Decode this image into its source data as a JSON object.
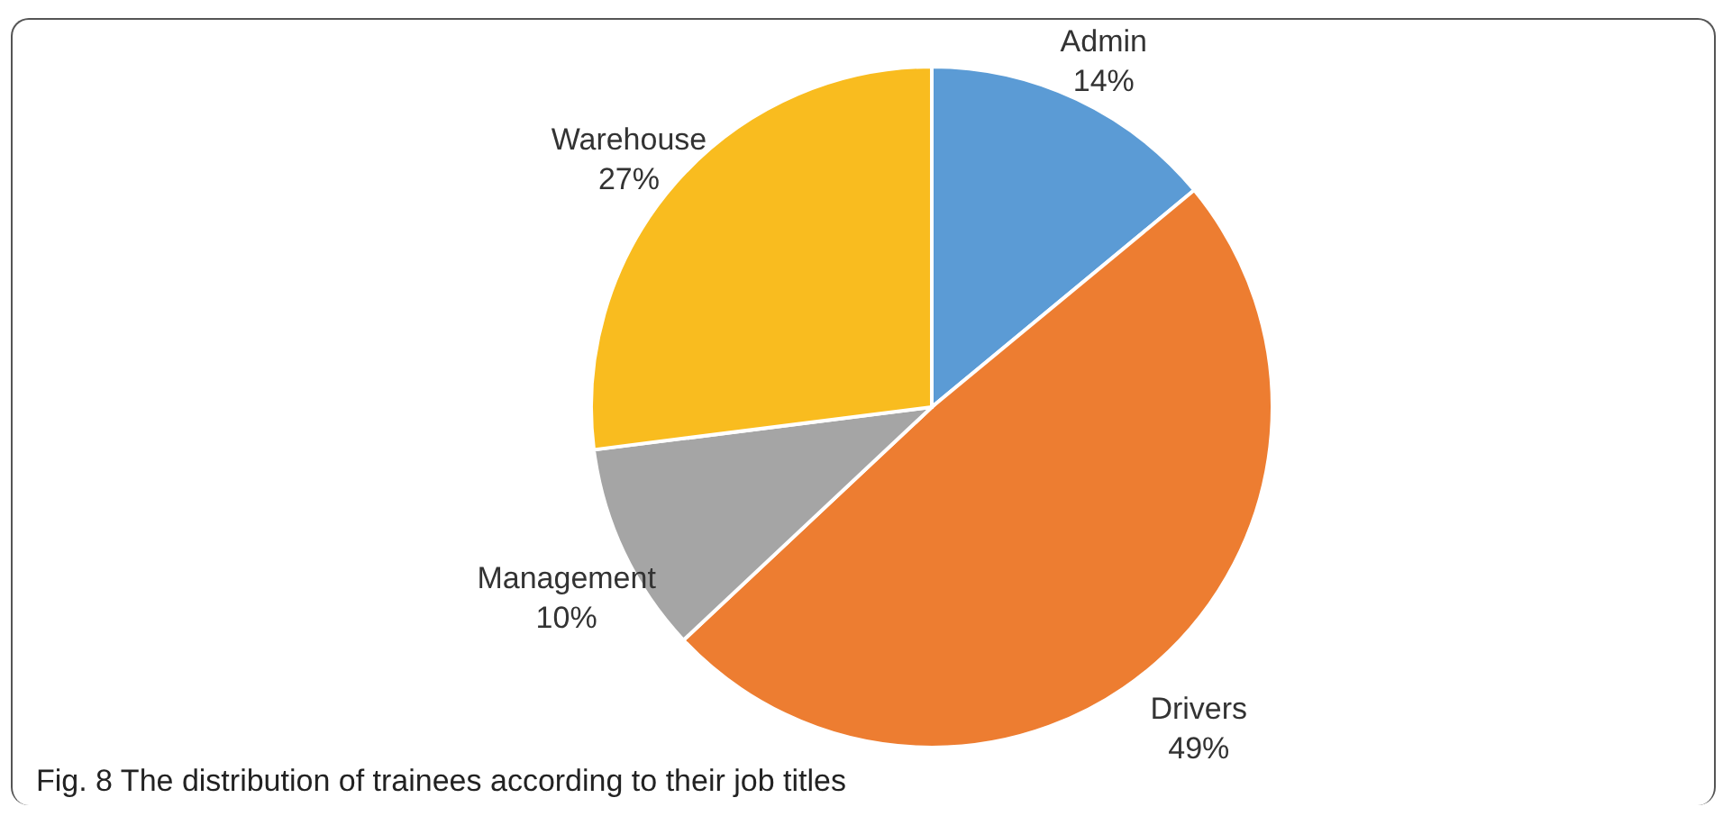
{
  "chart_data": {
    "type": "pie",
    "categories": [
      "Admin",
      "Drivers",
      "Management",
      "Warehouse"
    ],
    "values": [
      14,
      49,
      10,
      27
    ],
    "colors": [
      "#5b9bd5",
      "#ed7d31",
      "#a5a5a5",
      "#f9bc1f"
    ],
    "value_labels": [
      "14%",
      "49%",
      "10%",
      "27%"
    ],
    "annotations": [
      "Fig. 8 The distribution of trainees according to their job titles"
    ]
  }
}
